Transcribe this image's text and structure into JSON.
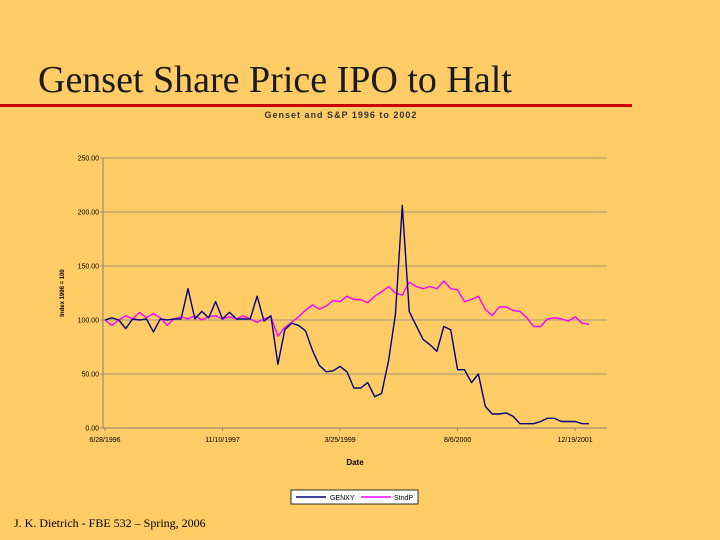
{
  "slide": {
    "title": "Genset Share Price IPO to Halt",
    "footer": "J. K. Dietrich - FBE 532 – Spring, 2006"
  },
  "colors": {
    "background": "#FFCC66",
    "title_rule": "#CC0000",
    "genxy": "#000080",
    "standp": "#FF00FF",
    "grid": "#808080"
  },
  "chart_data": {
    "type": "line",
    "title": "Genset and S&P 1996 to 2002",
    "xlabel": "Date",
    "ylabel": "Index 1996 = 100",
    "ylim": [
      0,
      250
    ],
    "yticks": [
      0,
      50,
      100,
      150,
      200,
      250
    ],
    "ytick_labels": [
      "0.00",
      "50.00",
      "100.00",
      "150.00",
      "200.00",
      "250.00"
    ],
    "xtick_labels": [
      {
        "label": "6/28/1996",
        "index": 0
      },
      {
        "label": "11/10/1997",
        "index": 17
      },
      {
        "label": "3/25/1999",
        "index": 34
      },
      {
        "label": "8/6/2000",
        "index": 51
      },
      {
        "label": "12/19/2001",
        "index": 68
      }
    ],
    "grid": true,
    "legend_position": "bottom",
    "series": [
      {
        "name": "GENXY",
        "color": "#000080",
        "values": [
          100,
          102,
          100,
          92,
          101,
          100,
          101,
          89,
          101,
          100,
          101,
          101,
          129,
          101,
          108,
          102,
          117,
          101,
          107,
          101,
          101,
          101,
          122,
          99,
          104,
          59,
          91,
          97,
          95,
          90,
          72,
          58,
          52,
          53,
          57,
          52,
          37,
          37,
          42,
          29,
          32,
          62,
          105,
          206,
          108,
          95,
          82,
          77,
          71,
          94,
          91,
          54,
          54,
          42,
          50,
          20,
          13,
          13,
          14,
          11,
          4,
          4,
          4,
          6,
          9,
          9,
          6,
          6,
          6,
          4,
          4
        ]
      },
      {
        "name": "StndP",
        "color": "#FF00FF",
        "values": [
          100,
          95,
          100,
          104,
          101,
          107,
          102,
          106,
          102,
          95,
          101,
          103,
          101,
          104,
          100,
          103,
          104,
          101,
          103,
          101,
          104,
          101,
          98,
          101,
          103,
          85,
          93,
          98,
          103,
          109,
          114,
          110,
          113,
          118,
          117,
          122,
          119,
          119,
          116,
          122,
          126,
          131,
          125,
          123,
          135,
          131,
          129,
          131,
          129,
          136,
          129,
          128,
          117,
          119,
          122,
          110,
          104,
          112,
          112,
          109,
          108,
          102,
          94,
          94,
          101,
          102,
          101,
          99,
          103,
          97,
          96
        ]
      }
    ]
  }
}
